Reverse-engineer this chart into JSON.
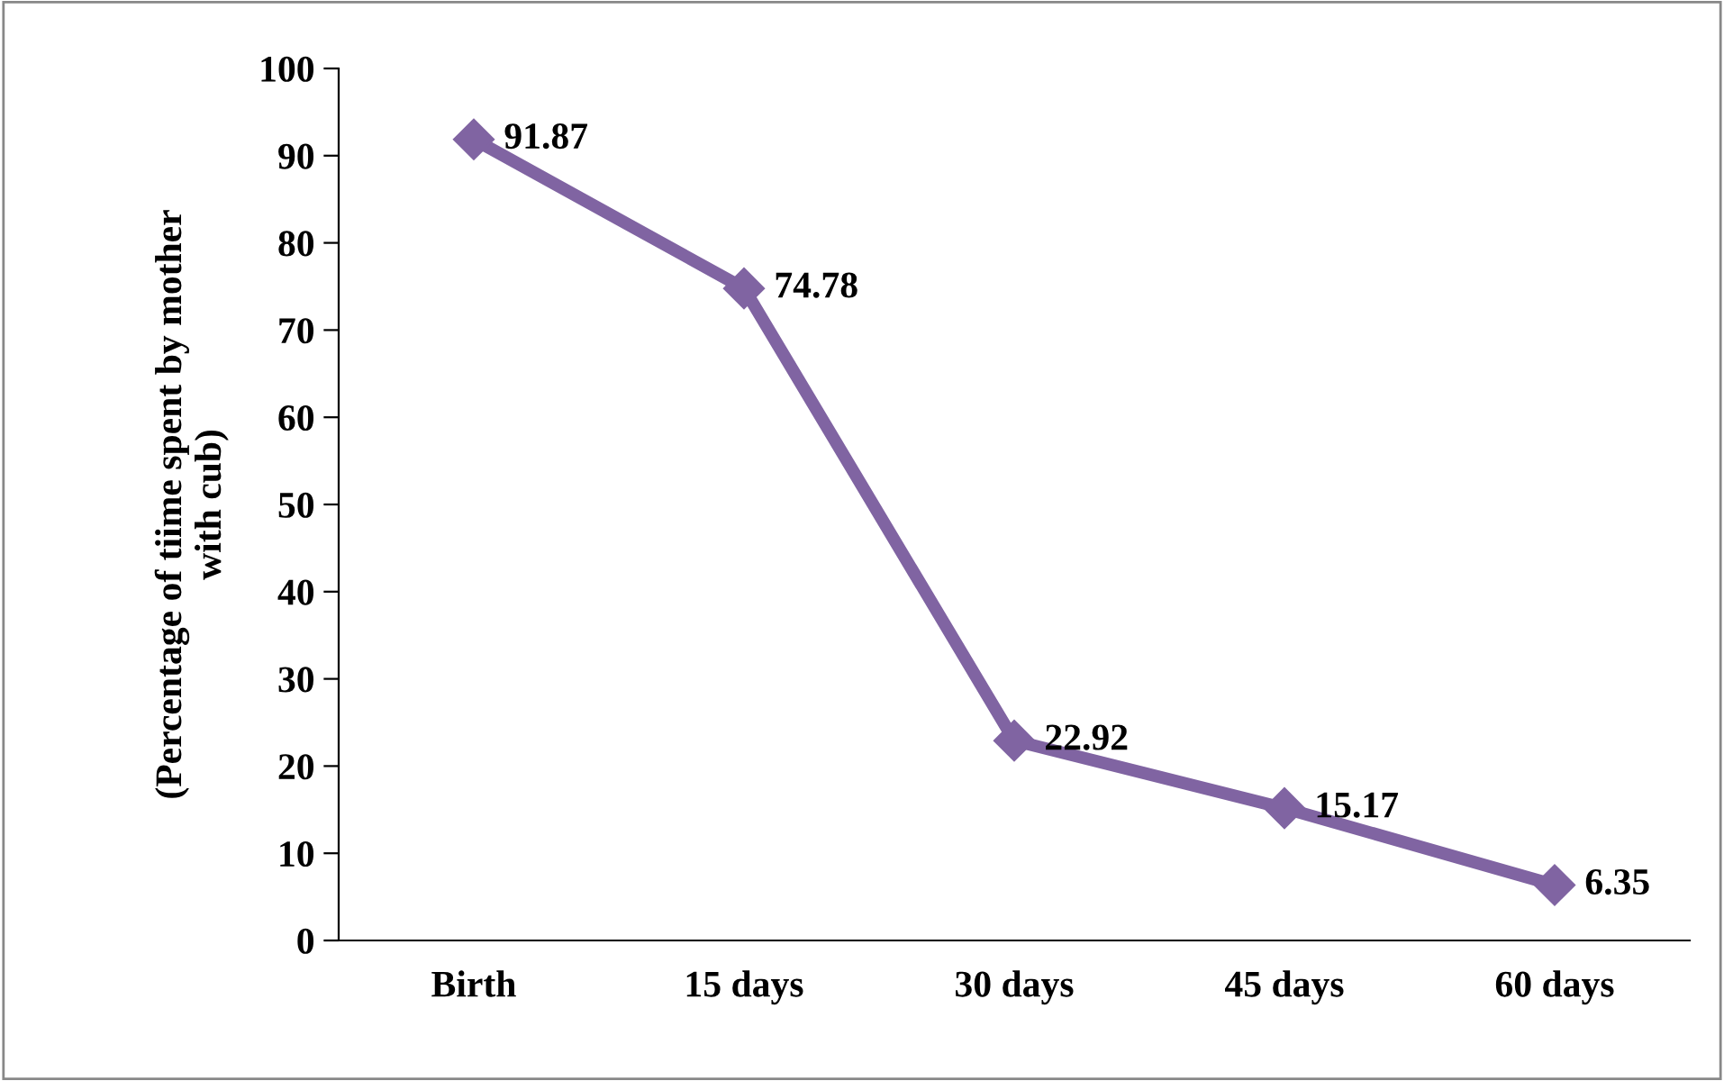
{
  "chart_data": {
    "type": "line",
    "ylabel": "(Percentage of tiime spent by mother\nwith cub)",
    "categories": [
      "Birth",
      "15 days",
      "30 days",
      "45 days",
      "60 days"
    ],
    "series": [
      {
        "color": "#8064a2",
        "values": [
          91.87,
          74.78,
          22.92,
          15.17,
          6.35
        ]
      }
    ],
    "ylim": [
      0,
      100
    ],
    "yticks": [
      0,
      10,
      20,
      30,
      40,
      50,
      60,
      70,
      80,
      90,
      100
    ],
    "grid": false,
    "legend": false,
    "marker": "diamond",
    "line_style": "solid",
    "data_labels": true
  }
}
